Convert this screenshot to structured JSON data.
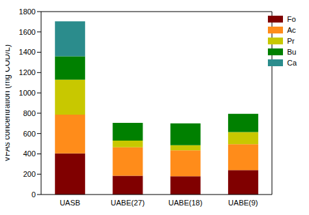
{
  "chart_data": {
    "type": "bar",
    "stacked": true,
    "ylabel": "VFAs concentration (mg COD/L)",
    "categories": [
      "UASB",
      "UABE(27)",
      "UABE(18)",
      "UABE(9)"
    ],
    "series": [
      {
        "name": "Fo",
        "color": "#800000",
        "values": [
          405,
          185,
          180,
          240
        ]
      },
      {
        "name": "Ac",
        "color": "#ff8c1a",
        "values": [
          380,
          280,
          255,
          255
        ]
      },
      {
        "name": "Pr",
        "color": "#c8c800",
        "values": [
          345,
          65,
          50,
          120
        ]
      },
      {
        "name": "Bu",
        "color": "#008000",
        "values": [
          230,
          175,
          215,
          180
        ]
      },
      {
        "name": "Ca",
        "color": "#2b8c8c",
        "values": [
          345,
          0,
          0,
          0
        ]
      }
    ],
    "ylim": [
      0,
      1800
    ],
    "yticks": [
      0,
      200,
      400,
      600,
      800,
      1000,
      1200,
      1400,
      1600,
      1800
    ],
    "legend": "upper right",
    "grid": false
  }
}
